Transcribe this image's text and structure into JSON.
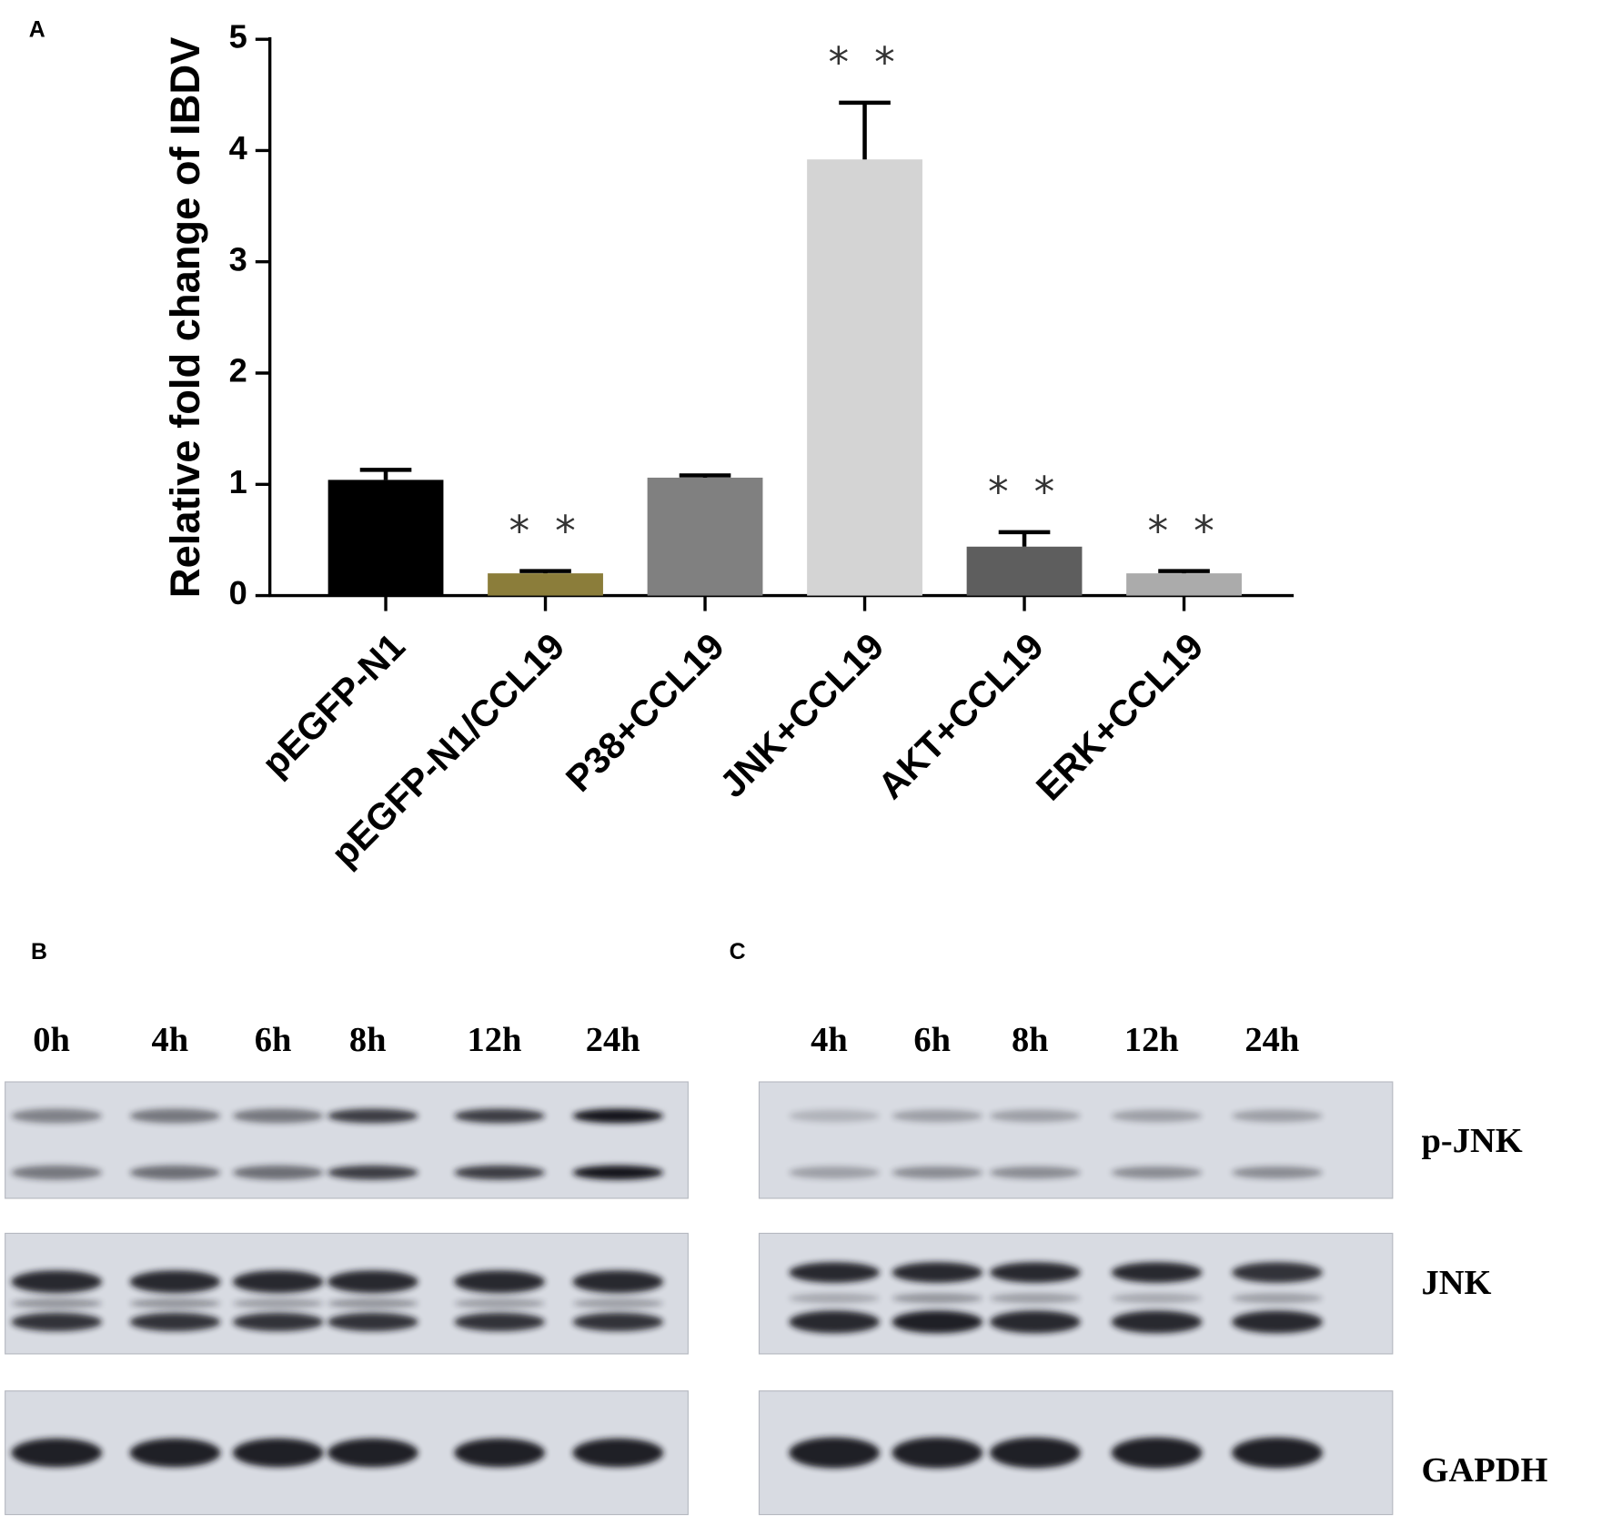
{
  "chart_data": {
    "type": "bar",
    "panel_label": "A",
    "ylabel": "Relative fold change of IBDV",
    "categories": [
      "pEGFP-N1",
      "pEGFP-N1/CCL19",
      "P38+CCL19",
      "JNK+CCL19",
      "AKT+CCL19",
      "ERK+CCL19"
    ],
    "values": [
      1.04,
      0.2,
      1.06,
      3.92,
      0.44,
      0.2
    ],
    "errors": [
      0.09,
      0.02,
      0.02,
      0.51,
      0.13,
      0.02
    ],
    "colors": [
      "#000000",
      "#8b7d3a",
      "#808080",
      "#d4d4d4",
      "#5e5e5e",
      "#ababab"
    ],
    "significance": [
      null,
      "* *",
      null,
      "* *",
      "* *",
      "* *"
    ],
    "ylim": [
      0,
      5
    ],
    "yticks": [
      0,
      1,
      2,
      3,
      4,
      5
    ]
  },
  "panel_b": {
    "label": "B",
    "lanes": [
      "0h",
      "4h",
      "6h",
      "8h",
      "12h",
      "24h"
    ]
  },
  "panel_c": {
    "label": "C",
    "lanes": [
      "4h",
      "6h",
      "8h",
      "12h",
      "24h"
    ]
  },
  "blot_rows": [
    "p-JNK",
    "JNK",
    "GAPDH"
  ]
}
